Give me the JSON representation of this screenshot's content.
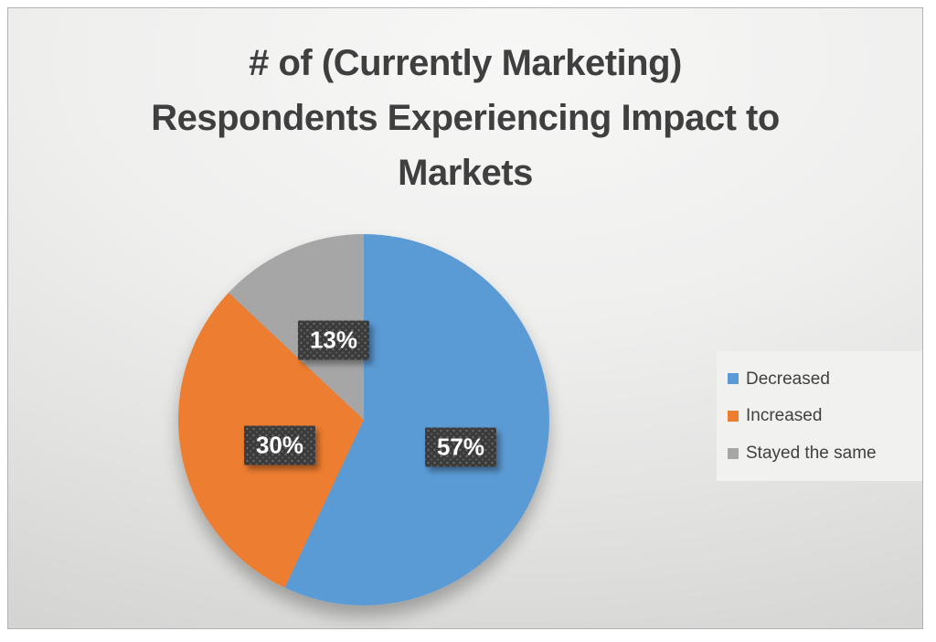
{
  "chart_data": {
    "type": "pie",
    "title": "# of (Currently Marketing) Respondents Experiencing Impact to Markets",
    "title_lines": [
      "# of (Currently Marketing)",
      "Respondents Experiencing Impact to",
      "Markets"
    ],
    "slices": [
      {
        "label": "Decreased",
        "value": 57,
        "percent_label": "57%",
        "color": "#5b9bd5"
      },
      {
        "label": "Increased",
        "value": 30,
        "percent_label": "30%",
        "color": "#ed7d31"
      },
      {
        "label": "Stayed the same",
        "value": 13,
        "percent_label": "13%",
        "color": "#a6a6a6"
      }
    ],
    "total": 100,
    "start_angle_deg": 0,
    "direction": "clockwise",
    "legend_position": "right",
    "data_label_style": "dark dotted box, white bold text",
    "background": "light gray gradient"
  },
  "colors": {
    "title_text": "#3f3f3f",
    "legend_text": "#404040",
    "label_box_bg": "#3a3a3a",
    "label_box_text": "#ffffff",
    "legend_panel_bg": "#f1f1f0",
    "frame_border": "#b3b3b3"
  }
}
